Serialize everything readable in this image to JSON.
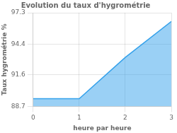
{
  "chart_data": {
    "type": "area",
    "title": "Evolution du taux d'hygrométrie",
    "xlabel": "heure par heure",
    "ylabel": "Taux hygrométrie %",
    "x": [
      0,
      1,
      2,
      3
    ],
    "values": [
      89.4,
      89.4,
      93.2,
      96.5
    ],
    "xlim": [
      0,
      3
    ],
    "ylim": [
      88.7,
      97.3
    ],
    "xticks": [
      0,
      1,
      2,
      3
    ],
    "yticks": [
      88.7,
      91.6,
      94.4,
      97.3
    ],
    "grid": true
  }
}
